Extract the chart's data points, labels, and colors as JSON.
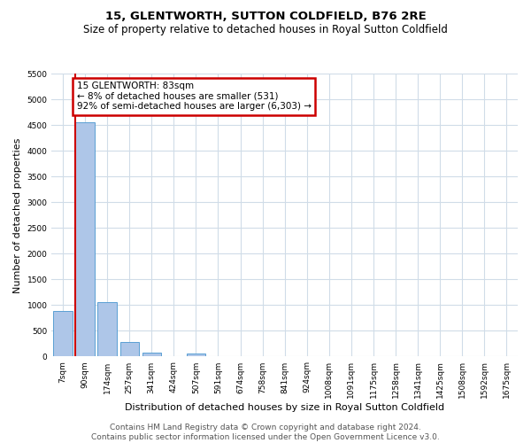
{
  "title": "15, GLENTWORTH, SUTTON COLDFIELD, B76 2RE",
  "subtitle": "Size of property relative to detached houses in Royal Sutton Coldfield",
  "xlabel": "Distribution of detached houses by size in Royal Sutton Coldfield",
  "ylabel": "Number of detached properties",
  "categories": [
    "7sqm",
    "90sqm",
    "174sqm",
    "257sqm",
    "341sqm",
    "424sqm",
    "507sqm",
    "591sqm",
    "674sqm",
    "758sqm",
    "841sqm",
    "924sqm",
    "1008sqm",
    "1091sqm",
    "1175sqm",
    "1258sqm",
    "1341sqm",
    "1425sqm",
    "1508sqm",
    "1592sqm",
    "1675sqm"
  ],
  "values": [
    880,
    4560,
    1060,
    290,
    80,
    0,
    55,
    0,
    0,
    0,
    0,
    0,
    0,
    0,
    0,
    0,
    0,
    0,
    0,
    0,
    0
  ],
  "bar_color": "#aec6e8",
  "bar_edge_color": "#5a9fd4",
  "annotation_text": "15 GLENTWORTH: 83sqm\n← 8% of detached houses are smaller (531)\n92% of semi-detached houses are larger (6,303) →",
  "annotation_box_color": "#ffffff",
  "annotation_box_edge": "#cc0000",
  "vline_color": "#cc0000",
  "vline_x": 0.55,
  "ylim": [
    0,
    5500
  ],
  "yticks": [
    0,
    500,
    1000,
    1500,
    2000,
    2500,
    3000,
    3500,
    4000,
    4500,
    5000,
    5500
  ],
  "footer": "Contains HM Land Registry data © Crown copyright and database right 2024.\nContains public sector information licensed under the Open Government Licence v3.0.",
  "bg_color": "#ffffff",
  "grid_color": "#d0dce8",
  "title_fontsize": 9.5,
  "subtitle_fontsize": 8.5,
  "axis_label_fontsize": 8,
  "tick_fontsize": 6.5,
  "annot_fontsize": 7.5,
  "footer_fontsize": 6.5
}
